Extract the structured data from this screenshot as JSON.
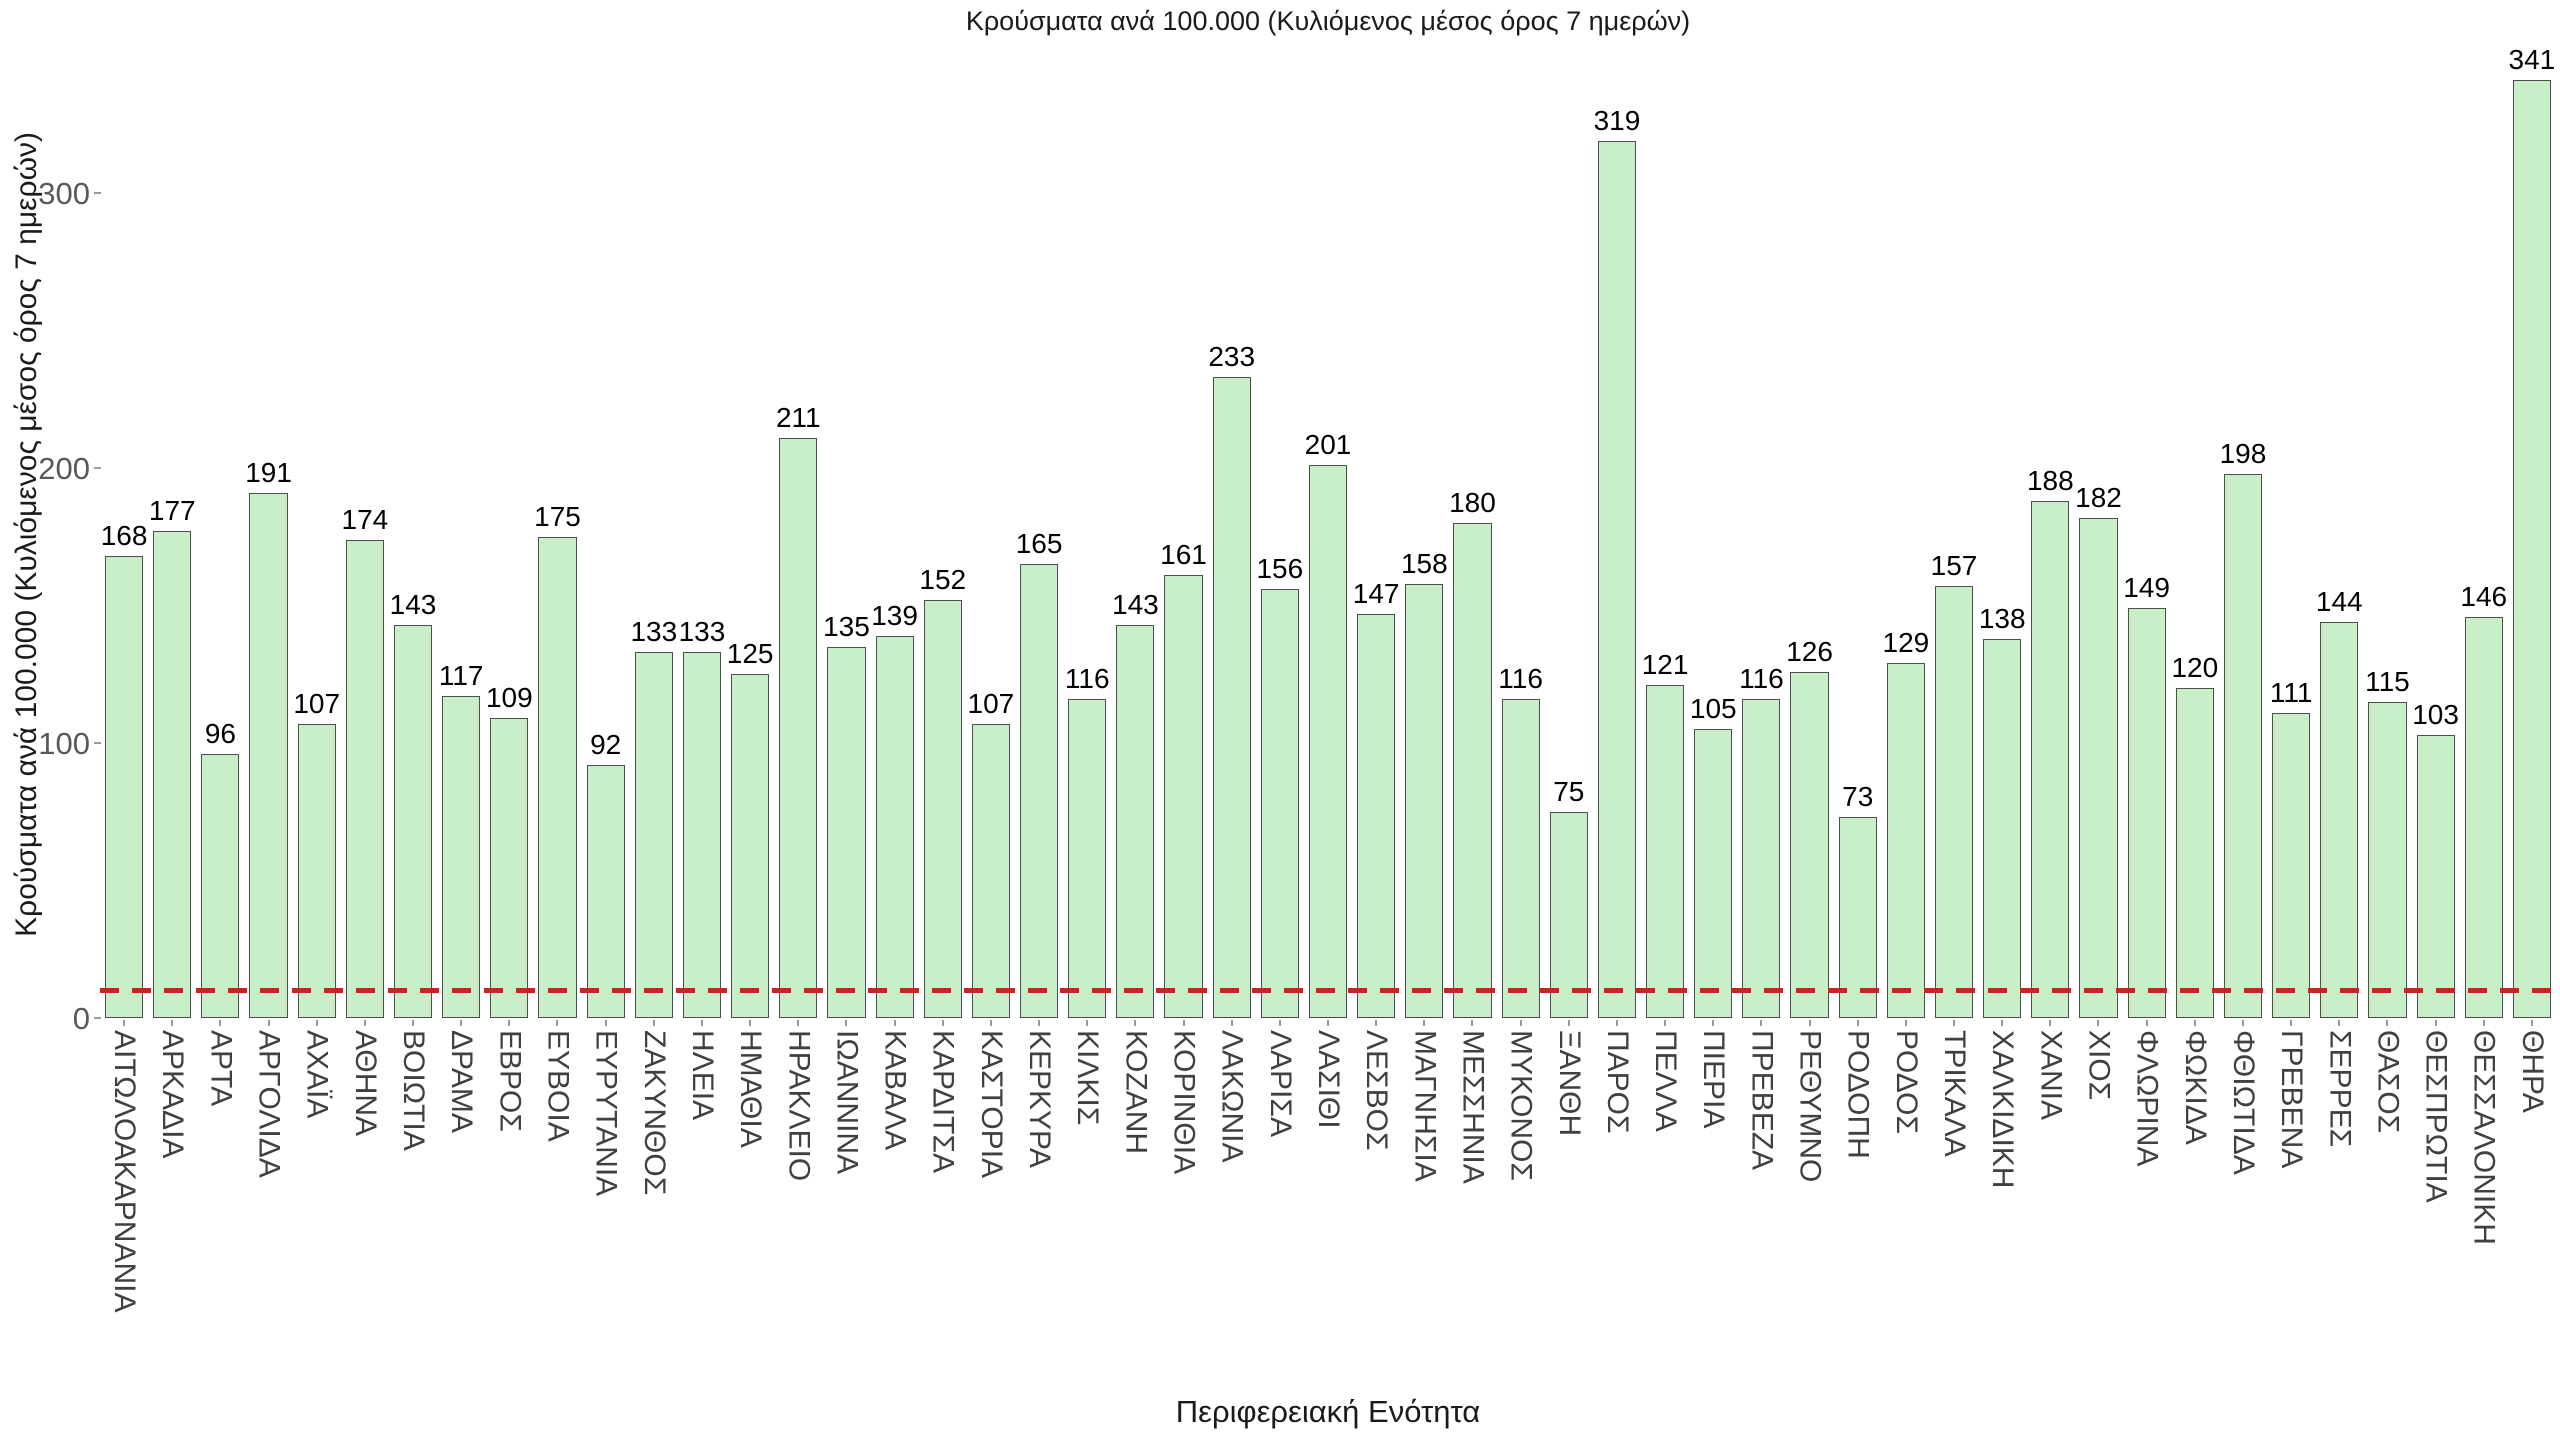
{
  "chart_data": {
    "type": "bar",
    "title": "Κρούσματα ανά 100.000 (Κυλιόμενος μέσος όρος 7 ημερών)",
    "xlabel": "Περιφερειακή Ενότητα",
    "ylabel": "Κρούσματα ανά 100.000 (Κυλιόμενος μέσος όρος 7 ημερών)",
    "categories": [
      "ΑΙΤΩΛΟΑΚΑΡΝΑΝΙΑ",
      "ΑΡΚΑΔΙΑ",
      "ΑΡΤΑ",
      "ΑΡΓΟΛΙΔΑ",
      "ΑΧΑΪΑ",
      "ΑΘΗΝΑ",
      "ΒΟΙΩΤΙΑ",
      "ΔΡΑΜΑ",
      "ΕΒΡΟΣ",
      "ΕΥΒΟΙΑ",
      "ΕΥΡΥΤΑΝΙΑ",
      "ΖΑΚΥΝΘΟΣ",
      "ΗΛΕΙΑ",
      "ΗΜΑΘΙΑ",
      "ΗΡΑΚΛΕΙΟ",
      "ΙΩΑΝΝΙΝΑ",
      "ΚΑΒΑΛΑ",
      "ΚΑΡΔΙΤΣΑ",
      "ΚΑΣΤΟΡΙΑ",
      "ΚΕΡΚΥΡΑ",
      "ΚΙΛΚΙΣ",
      "ΚΟΖΑΝΗ",
      "ΚΟΡΙΝΘΙΑ",
      "ΛΑΚΩΝΙΑ",
      "ΛΑΡΙΣΑ",
      "ΛΑΣΙΘΙ",
      "ΛΕΣΒΟΣ",
      "ΜΑΓΝΗΣΙΑ",
      "ΜΕΣΣΗΝΙΑ",
      "ΜΥΚΟΝΟΣ",
      "ΞΑΝΘΗ",
      "ΠΑΡΟΣ",
      "ΠΕΛΛΑ",
      "ΠΙΕΡΙΑ",
      "ΠΡΕΒΕΖΑ",
      "ΡΕΘΥΜΝΟ",
      "ΡΟΔΟΠΗ",
      "ΡΟΔΟΣ",
      "ΤΡΙΚΑΛΑ",
      "ΧΑΛΚΙΔΙΚΗ",
      "ΧΑΝΙΑ",
      "ΧΙΟΣ",
      "ΦΛΩΡΙΝΑ",
      "ΦΩΚΙΔΑ",
      "ΦΘΙΩΤΙΔΑ",
      "ΓΡΕΒΕΝΑ",
      "ΣΕΡΡΕΣ",
      "ΘΑΣΟΣ",
      "ΘΕΣΠΡΩΤΙΑ",
      "ΘΕΣΣΑΛΟΝΙΚΗ",
      "ΘΗΡΑ"
    ],
    "values": [
      168,
      177,
      96,
      191,
      107,
      174,
      143,
      117,
      109,
      175,
      92,
      133,
      133,
      125,
      211,
      135,
      139,
      152,
      107,
      165,
      116,
      143,
      161,
      233,
      156,
      201,
      147,
      158,
      180,
      116,
      75,
      319,
      121,
      105,
      116,
      126,
      73,
      129,
      157,
      138,
      188,
      182,
      149,
      120,
      198,
      111,
      144,
      115,
      103,
      146,
      341
    ],
    "yticks": [
      0,
      100,
      200,
      300
    ],
    "ylim": [
      0,
      356
    ],
    "grid": false,
    "legend": null,
    "bar_fill_color": "#c9efc9",
    "bar_border_color": "#4f4f4f",
    "value_label_color": "#000000",
    "ytick_color": "#595959",
    "xtick_color": "#404040",
    "threshold_line": {
      "y": 10,
      "color": "#cc2222",
      "style": "dashed"
    }
  }
}
